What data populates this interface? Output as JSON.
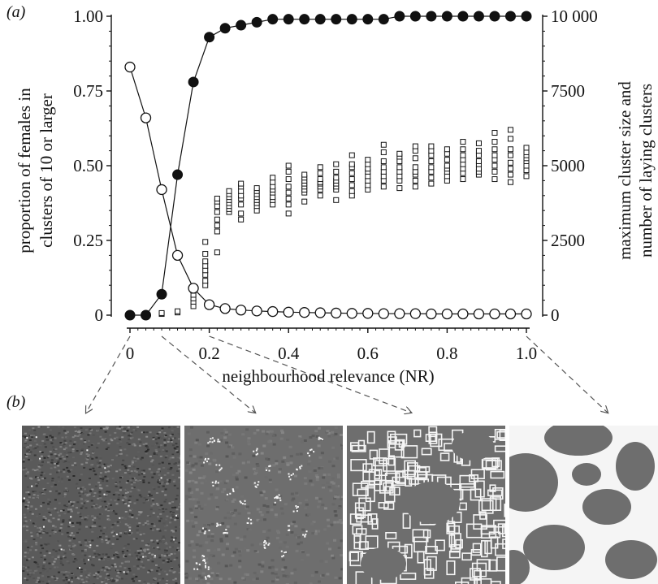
{
  "panel_labels": {
    "a": "(a)",
    "b": "(b)"
  },
  "chart_data": {
    "type": "scatter",
    "xlabel": "neighbourhood relevance (NR)",
    "ylabel_left": [
      "proportion of females in",
      "clusters of 10 or larger"
    ],
    "ylabel_right": [
      "maximum cluster size and",
      "number of laying clusters"
    ],
    "xlim": [
      0,
      1
    ],
    "ylim_left": [
      0,
      1
    ],
    "ylim_right": [
      0,
      10000
    ],
    "x_ticks": [
      0,
      0.2,
      0.4,
      0.6,
      0.8,
      1
    ],
    "x_tick_labels": [
      "0",
      "0.2",
      "0.4",
      "0.6",
      "0.8",
      "1.0"
    ],
    "y_left_ticks": [
      0,
      0.25,
      0.5,
      0.75,
      1
    ],
    "y_left_tick_labels": [
      "0",
      "0.25",
      "0.50",
      "0.75",
      "1.00"
    ],
    "y_right_ticks": [
      0,
      2500,
      5000,
      7500,
      10000
    ],
    "y_right_tick_labels": [
      "0",
      "2500",
      "5000",
      "7500",
      "10 000"
    ],
    "grid": false,
    "series": [
      {
        "marker": "filled-circle",
        "axis": "left",
        "color": "#111111",
        "x": [
          0,
          0.04,
          0.08,
          0.12,
          0.16,
          0.2,
          0.24,
          0.28,
          0.32,
          0.36,
          0.4,
          0.44,
          0.48,
          0.52,
          0.56,
          0.6,
          0.64,
          0.68,
          0.72,
          0.76,
          0.8,
          0.84,
          0.88,
          0.92,
          0.96,
          1.0
        ],
        "y": [
          0,
          0,
          0.07,
          0.47,
          0.78,
          0.93,
          0.96,
          0.97,
          0.98,
          0.99,
          0.99,
          0.99,
          0.99,
          0.99,
          0.99,
          0.99,
          0.99,
          1.0,
          1.0,
          1.0,
          1.0,
          1.0,
          1.0,
          1.0,
          1.0,
          1.0
        ]
      },
      {
        "marker": "open-circle",
        "axis": "left",
        "color": "#111111",
        "x": [
          0,
          0.04,
          0.08,
          0.12,
          0.16,
          0.2,
          0.24,
          0.28,
          0.32,
          0.36,
          0.4,
          0.44,
          0.48,
          0.52,
          0.56,
          0.6,
          0.64,
          0.68,
          0.72,
          0.76,
          0.8,
          0.84,
          0.88,
          0.92,
          0.96,
          1.0
        ],
        "y": [
          0.83,
          0.66,
          0.42,
          0.2,
          0.09,
          0.035,
          0.022,
          0.017,
          0.014,
          0.012,
          0.01,
          0.009,
          0.008,
          0.007,
          0.006,
          0.006,
          0.005,
          0.005,
          0.005,
          0.004,
          0.004,
          0.004,
          0.004,
          0.004,
          0.004,
          0.004
        ]
      },
      {
        "marker": "open-square",
        "axis": "right",
        "color": "#111111",
        "x": [
          0.08,
          0.08,
          0.12,
          0.12,
          0.16,
          0.16,
          0.16,
          0.16,
          0.16,
          0.19,
          0.19,
          0.19,
          0.19,
          0.19,
          0.19,
          0.19,
          0.19,
          0.22,
          0.22,
          0.22,
          0.22,
          0.22,
          0.22,
          0.22,
          0.22,
          0.25,
          0.25,
          0.25,
          0.25,
          0.25,
          0.25,
          0.25,
          0.25,
          0.28,
          0.28,
          0.28,
          0.28,
          0.28,
          0.28,
          0.28,
          0.28,
          0.32,
          0.32,
          0.32,
          0.32,
          0.32,
          0.32,
          0.32,
          0.32,
          0.36,
          0.36,
          0.36,
          0.36,
          0.36,
          0.36,
          0.36,
          0.36,
          0.4,
          0.4,
          0.4,
          0.4,
          0.4,
          0.4,
          0.4,
          0.4,
          0.44,
          0.44,
          0.44,
          0.44,
          0.44,
          0.44,
          0.44,
          0.44,
          0.48,
          0.48,
          0.48,
          0.48,
          0.48,
          0.48,
          0.48,
          0.48,
          0.52,
          0.52,
          0.52,
          0.52,
          0.52,
          0.52,
          0.52,
          0.52,
          0.56,
          0.56,
          0.56,
          0.56,
          0.56,
          0.56,
          0.56,
          0.56,
          0.6,
          0.6,
          0.6,
          0.6,
          0.6,
          0.6,
          0.6,
          0.6,
          0.64,
          0.64,
          0.64,
          0.64,
          0.64,
          0.64,
          0.64,
          0.64,
          0.68,
          0.68,
          0.68,
          0.68,
          0.68,
          0.68,
          0.68,
          0.68,
          0.72,
          0.72,
          0.72,
          0.72,
          0.72,
          0.72,
          0.72,
          0.72,
          0.76,
          0.76,
          0.76,
          0.76,
          0.76,
          0.76,
          0.76,
          0.76,
          0.8,
          0.8,
          0.8,
          0.8,
          0.8,
          0.8,
          0.8,
          0.8,
          0.84,
          0.84,
          0.84,
          0.84,
          0.84,
          0.84,
          0.84,
          0.84,
          0.88,
          0.88,
          0.88,
          0.88,
          0.88,
          0.88,
          0.88,
          0.88,
          0.92,
          0.92,
          0.92,
          0.92,
          0.92,
          0.92,
          0.92,
          0.92,
          0.96,
          0.96,
          0.96,
          0.96,
          0.96,
          0.96,
          0.96,
          0.96,
          1.0,
          1.0,
          1.0,
          1.0,
          1.0,
          1.0,
          1.0,
          1.0
        ],
        "y": [
          40,
          70,
          90,
          130,
          300,
          450,
          560,
          680,
          820,
          1000,
          1150,
          1350,
          1500,
          1650,
          1800,
          2050,
          2450,
          2100,
          2800,
          3000,
          3200,
          3450,
          3650,
          3800,
          3900,
          3450,
          3550,
          3650,
          3750,
          3850,
          3950,
          4050,
          4150,
          3200,
          3400,
          3700,
          3900,
          4000,
          4150,
          4300,
          4400,
          3500,
          3650,
          3750,
          3850,
          3950,
          4050,
          4150,
          4250,
          3700,
          3850,
          3950,
          4100,
          4200,
          4300,
          4450,
          4600,
          3400,
          3700,
          3900,
          4100,
          4300,
          4550,
          4800,
          5000,
          3800,
          4100,
          4200,
          4300,
          4400,
          4500,
          4600,
          4700,
          4000,
          4200,
          4300,
          4400,
          4450,
          4550,
          4750,
          4950,
          3850,
          4200,
          4300,
          4400,
          4500,
          4600,
          4800,
          5050,
          4000,
          4150,
          4350,
          4550,
          4750,
          4950,
          5050,
          5350,
          4200,
          4350,
          4500,
          4650,
          4800,
          4900,
          5050,
          5200,
          4300,
          4500,
          4650,
          4800,
          4950,
          5150,
          5450,
          5700,
          4250,
          4500,
          4650,
          4800,
          4950,
          5150,
          5300,
          5400,
          4300,
          4500,
          4700,
          4800,
          4950,
          5250,
          5500,
          5650,
          4400,
          4600,
          4800,
          4950,
          5150,
          5350,
          5500,
          5650,
          4500,
          4650,
          4800,
          4900,
          5000,
          5200,
          5400,
          5550,
          4550,
          4750,
          4900,
          5050,
          5200,
          5350,
          5550,
          5800,
          4700,
          4800,
          4900,
          5050,
          5150,
          5350,
          5500,
          5750,
          4550,
          4800,
          5000,
          5200,
          5350,
          5550,
          5800,
          6100,
          4450,
          4700,
          4900,
          5100,
          5350,
          5550,
          5900,
          6200,
          4650,
          4850,
          5000,
          5150,
          5250,
          5350,
          5450,
          5600
        ]
      }
    ],
    "annotations": "dashed arrows from NR = 0, 0.08, 0.2 and 1.0 on the x-axis to the four lattice snapshots in panel (b)"
  },
  "colors": {
    "ink": "#111111",
    "map_background": "#6e6e6e",
    "map_cluster": "#f5f5f5"
  }
}
